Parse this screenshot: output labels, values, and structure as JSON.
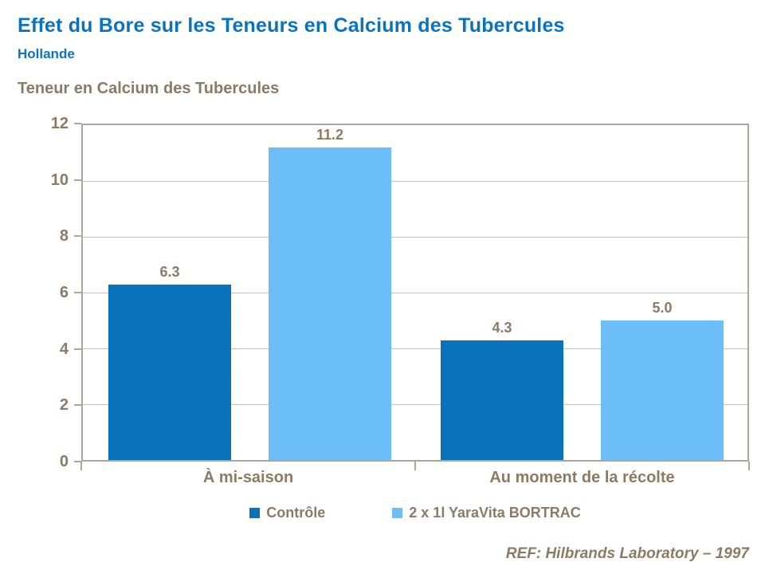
{
  "header": {
    "title": "Effet du Bore sur les Teneurs en Calcium des Tubercules",
    "subtitle": "Hollande"
  },
  "chart_data": {
    "type": "bar",
    "title": "Teneur en Calcium des Tubercules",
    "categories": [
      "À mi-saison",
      "Au moment de la récolte"
    ],
    "series": [
      {
        "name": "Contrôle",
        "color": "#0872BD",
        "values": [
          6.3,
          4.3
        ]
      },
      {
        "name": "2 x 1l YaraVita BORTRAC",
        "color": "#6CBEF8",
        "values": [
          11.2,
          5.0
        ]
      },
      {
        "name_note": ""
      }
    ],
    "value_labels": [
      [
        "6.3",
        "4.3"
      ],
      [
        "11.2",
        "5.0"
      ]
    ],
    "ylim": [
      0,
      12
    ],
    "yticks": [
      0,
      2,
      4,
      6,
      8,
      10,
      12
    ],
    "grid": true,
    "legend_position": "bottom"
  },
  "footer": {
    "reference": "REF: Hilbrands Laboratory – 1997"
  },
  "colors": {
    "title_blue": "#0A73C1",
    "text_brown": "#8C7A62",
    "gridline": "#C9BFB2",
    "axis_border": "#B1A596",
    "bar_dark_blue": "#0872BD",
    "bar_light_blue": "#6CBEF8"
  }
}
